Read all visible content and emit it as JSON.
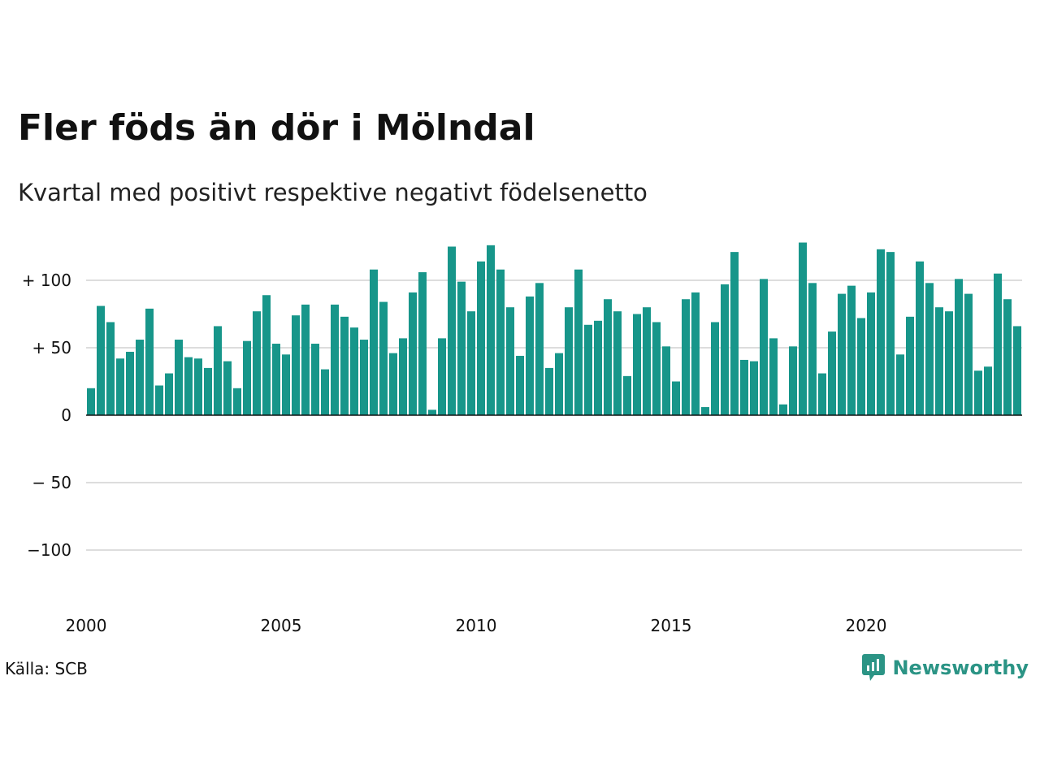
{
  "title": "Fler föds än dör i Mölndal",
  "subtitle": "Kvartal med positivt respektive negativt födelsenetto",
  "source": "Källa: SCB",
  "brand": "Newsworthy",
  "colors": {
    "bar": "#17968a",
    "grid": "#dddddd",
    "axis": "#111111",
    "brand": "#2b9485"
  },
  "chart_data": {
    "type": "bar",
    "ylim": [
      -140,
      140
    ],
    "yticks": [
      {
        "value": 100,
        "label": "+ 100"
      },
      {
        "value": 50,
        "label": "+  50"
      },
      {
        "value": 0,
        "label": "0"
      },
      {
        "value": -50,
        "label": "− 50"
      },
      {
        "value": -100,
        "label": "−100"
      }
    ],
    "xticks": [
      "2000",
      "2005",
      "2010",
      "2015",
      "2020"
    ],
    "start_year": 2000,
    "values": [
      20,
      81,
      69,
      42,
      47,
      56,
      79,
      22,
      31,
      56,
      43,
      42,
      35,
      66,
      40,
      20,
      55,
      77,
      89,
      53,
      45,
      74,
      82,
      53,
      34,
      82,
      73,
      65,
      56,
      108,
      84,
      46,
      57,
      91,
      106,
      4,
      57,
      125,
      99,
      77,
      114,
      126,
      108,
      80,
      44,
      88,
      98,
      35,
      46,
      80,
      108,
      67,
      70,
      86,
      77,
      29,
      75,
      80,
      69,
      51,
      25,
      86,
      91,
      6,
      69,
      97,
      121,
      41,
      40,
      101,
      57,
      8,
      51,
      128,
      98,
      31,
      62,
      90,
      96,
      72,
      91,
      123,
      121,
      45,
      73,
      114,
      98,
      80,
      77,
      101,
      90,
      33,
      36,
      105,
      86,
      66
    ]
  }
}
